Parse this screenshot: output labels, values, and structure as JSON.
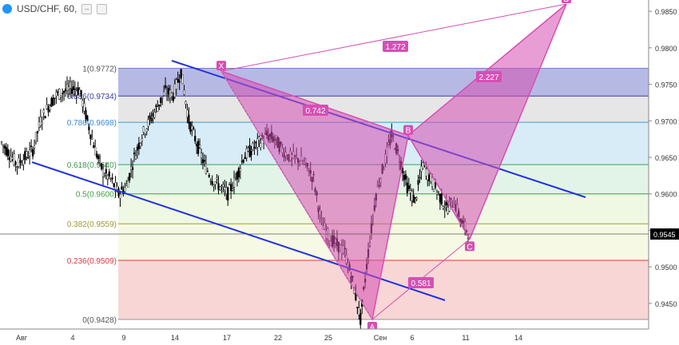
{
  "header": {
    "title": "USD/CHF, 60,"
  },
  "colors": {
    "pattern_fill": "#d64fb3",
    "channel": "#2233dd",
    "price_badge": "#000000"
  },
  "chart_data": {
    "type": "candlestick",
    "symbol": "USD/CHF",
    "interval": "60",
    "ylim": [
      0.9405,
      0.988
    ],
    "y_ticks": [
      "0.9850",
      "0.9800",
      "0.9750",
      "0.9700",
      "0.9650",
      "0.9600",
      "0.9550",
      "0.9500",
      "0.9450"
    ],
    "x_ticks": [
      "Авг",
      "4",
      "9",
      "14",
      "17",
      "22",
      "25",
      "Сен",
      "6",
      "11",
      "14"
    ],
    "current_price": "0.9545",
    "fib_levels": [
      {
        "ratio": "1",
        "value": 0.9772,
        "label": "1(0.9772)"
      },
      {
        "ratio": "0.886",
        "value": 0.9734,
        "label": "0.886(0.9734)"
      },
      {
        "ratio": "0.786",
        "value": 0.9698,
        "label": "0.786(0.9698)"
      },
      {
        "ratio": "0.618",
        "value": 0.964,
        "label": "0.618(0.9640)"
      },
      {
        "ratio": "0.5",
        "value": 0.96,
        "label": "0.5(0.9600)"
      },
      {
        "ratio": "0.382",
        "value": 0.9559,
        "label": "0.382(0.9559)"
      },
      {
        "ratio": "0.236",
        "value": 0.9509,
        "label": "0.236(0.9509)"
      },
      {
        "ratio": "0",
        "value": 0.9428,
        "label": "0(0.9428)"
      }
    ],
    "pattern_points": [
      {
        "label": "X",
        "value": 0.9768
      },
      {
        "label": "A",
        "value": 0.9428
      },
      {
        "label": "B",
        "value": 0.968
      },
      {
        "label": "C",
        "value": 0.9538
      },
      {
        "label": "D",
        "value": 0.986
      }
    ],
    "pattern_ratios": [
      "1.272",
      "0.742",
      "2.227",
      "0.581"
    ],
    "price_path": [
      0.967,
      0.9655,
      0.964,
      0.965,
      0.966,
      0.97,
      0.972,
      0.9735,
      0.974,
      0.9745,
      0.9742,
      0.97,
      0.966,
      0.963,
      0.962,
      0.96,
      0.961,
      0.965,
      0.968,
      0.97,
      0.972,
      0.974,
      0.9735,
      0.9768,
      0.97,
      0.967,
      0.964,
      0.962,
      0.961,
      0.96,
      0.962,
      0.965,
      0.966,
      0.967,
      0.968,
      0.9675,
      0.966,
      0.965,
      0.9648,
      0.964,
      0.962,
      0.956,
      0.954,
      0.953,
      0.952,
      0.948,
      0.9428,
      0.952,
      0.96,
      0.964,
      0.968,
      0.965,
      0.961,
      0.959,
      0.964,
      0.962,
      0.96,
      0.958,
      0.959,
      0.956,
      0.9545
    ]
  }
}
